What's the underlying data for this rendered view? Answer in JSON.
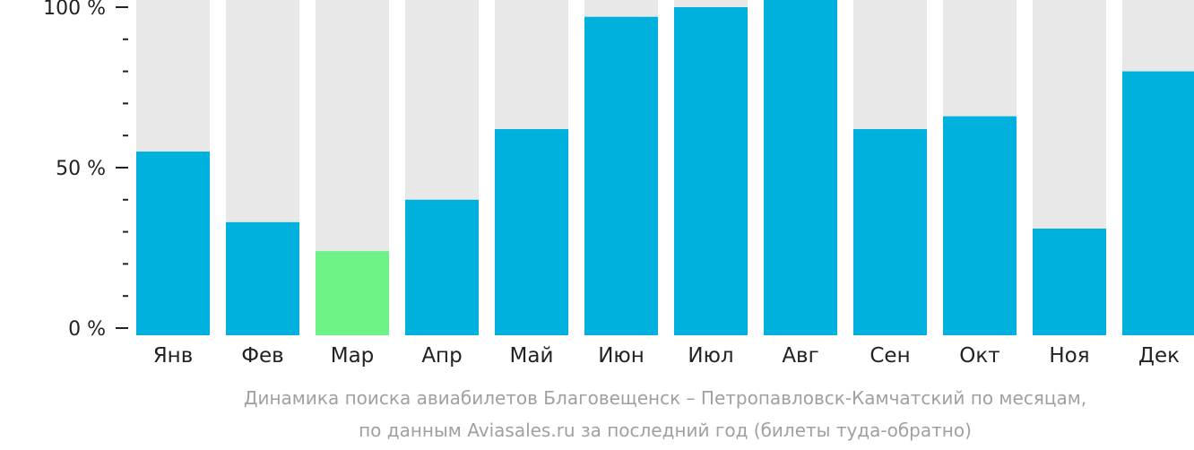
{
  "chart_data": {
    "type": "bar",
    "title": "",
    "xlabel": "",
    "ylabel": "",
    "ylim": [
      0,
      100
    ],
    "y_ticks": [
      {
        "value": 0,
        "label": "0 %"
      },
      {
        "value": 50,
        "label": "50 %"
      },
      {
        "value": 100,
        "label": "100 %"
      }
    ],
    "minor_ticks_per_major": 5,
    "grid": false,
    "legend": "none",
    "categories": [
      "Янв",
      "Фев",
      "Мар",
      "Апр",
      "Май",
      "Июн",
      "Июл",
      "Авг",
      "Сен",
      "Окт",
      "Ноя",
      "Дек"
    ],
    "values": [
      55,
      33,
      24,
      40,
      62,
      97,
      100,
      104,
      62,
      66,
      31,
      80
    ],
    "highlight_index": 2,
    "colors": {
      "bar": "#00b0dd",
      "highlight": "#6cf286",
      "background_bar": "#e8e8e8",
      "axis": "#222222",
      "text": "#222222",
      "caption": "#a0a0a0"
    }
  },
  "caption": {
    "line1": "Динамика поиска авиабилетов Благовещенск – Петропавловск-Камчатский по месяцам,",
    "line2": "по данным Aviasales.ru за последний год (билеты туда-обратно)"
  }
}
